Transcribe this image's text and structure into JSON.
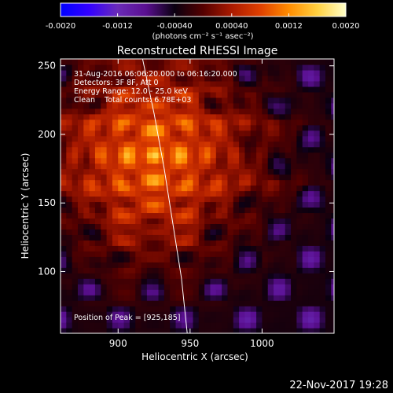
{
  "figure": {
    "title": "Reconstructed RHESSI Image",
    "date_stamp": "22-Nov-2017 19:28"
  },
  "colorbar": {
    "ticks": [
      "-0.0020",
      "-0.0012",
      "-0.00040",
      "0.00040",
      "0.0012",
      "0.0020"
    ],
    "unit_label": "(photons cm⁻² s⁻¹ asec⁻²)",
    "colors": {
      "stops": [
        "#0000ff",
        "#3300ff",
        "#6a2bb8",
        "#5a0f90",
        "#0a0010",
        "#550000",
        "#aa1a00",
        "#e04000",
        "#ff8c00",
        "#ffd040",
        "#ffffc8"
      ]
    }
  },
  "annotations": {
    "time_range": "31-Aug-2016 06:06:20.000 to 06:16:20.000",
    "detectors": "Detectors: 3F 8F, Att 0",
    "energy": "Energy Range: 12.0 - 25.0 keV",
    "clean": "Clean    Total counts: 6.78E+03",
    "peak": "Position of Peak = [925,185]"
  },
  "chart_data": {
    "type": "heatmap",
    "title": "Reconstructed RHESSI Image",
    "xlabel": "Heliocentric X (arcsec)",
    "ylabel": "Heliocentric Y (arcsec)",
    "xlim": [
      860,
      1050
    ],
    "ylim": [
      55,
      255
    ],
    "x_ticks": [
      900,
      950,
      1000
    ],
    "y_ticks": [
      100,
      150,
      200,
      250
    ],
    "value_range": [
      -0.002,
      0.002
    ],
    "peak_position": [
      925,
      185
    ],
    "peak_value": 0.002,
    "limb_line": [
      [
        917,
        255
      ],
      [
        925,
        215
      ],
      [
        932,
        175
      ],
      [
        938,
        135
      ],
      [
        944,
        95
      ],
      [
        948,
        55
      ]
    ]
  }
}
